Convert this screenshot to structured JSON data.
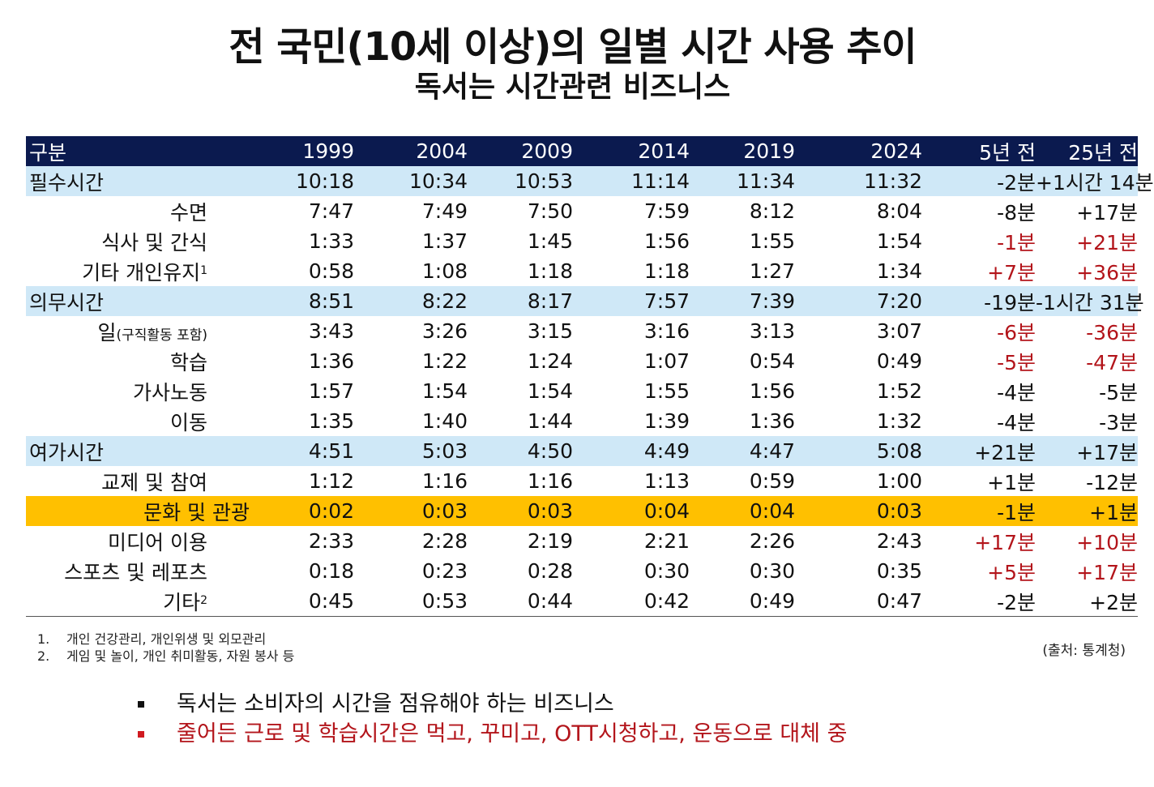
{
  "title": "전 국민(10세 이상)의 일별 시간 사용 추이",
  "subtitle": "독서는 시간관련 비즈니스",
  "table": {
    "headers": [
      "구분",
      "1999",
      "2004",
      "2009",
      "2014",
      "2019",
      "2024",
      "5년 전",
      "25년 전"
    ],
    "rows": [
      {
        "type": "category",
        "label": "필수시간",
        "values": [
          "10:18",
          "10:34",
          "10:53",
          "11:14",
          "11:34",
          "11:32",
          "-2분",
          "+1시간 14분"
        ],
        "red": [
          false,
          false
        ]
      },
      {
        "type": "sub",
        "label": "수면",
        "values": [
          "7:47",
          "7:49",
          "7:50",
          "7:59",
          "8:12",
          "8:04",
          "-8분",
          "+17분"
        ],
        "red": [
          false,
          false
        ]
      },
      {
        "type": "sub",
        "label": "식사 및 간식",
        "values": [
          "1:33",
          "1:37",
          "1:45",
          "1:56",
          "1:55",
          "1:54",
          "-1분",
          "+21분"
        ],
        "red": [
          true,
          true
        ]
      },
      {
        "type": "sub",
        "label": "기타 개인유지",
        "note": "1",
        "values": [
          "0:58",
          "1:08",
          "1:18",
          "1:18",
          "1:27",
          "1:34",
          "+7분",
          "+36분"
        ],
        "red": [
          true,
          true
        ]
      },
      {
        "type": "category",
        "label": "의무시간",
        "values": [
          "8:51",
          "8:22",
          "8:17",
          "7:57",
          "7:39",
          "7:20",
          "-19분",
          "-1시간 31분"
        ],
        "red": [
          false,
          false
        ]
      },
      {
        "type": "sub",
        "label": "일",
        "label_small": "(구직활동 포함)",
        "values": [
          "3:43",
          "3:26",
          "3:15",
          "3:16",
          "3:13",
          "3:07",
          "-6분",
          "-36분"
        ],
        "red": [
          true,
          true
        ]
      },
      {
        "type": "sub",
        "label": "학습",
        "values": [
          "1:36",
          "1:22",
          "1:24",
          "1:07",
          "0:54",
          "0:49",
          "-5분",
          "-47분"
        ],
        "red": [
          true,
          true
        ]
      },
      {
        "type": "sub",
        "label": "가사노동",
        "values": [
          "1:57",
          "1:54",
          "1:54",
          "1:55",
          "1:56",
          "1:52",
          "-4분",
          "-5분"
        ],
        "red": [
          false,
          false
        ]
      },
      {
        "type": "sub",
        "label": "이동",
        "values": [
          "1:35",
          "1:40",
          "1:44",
          "1:39",
          "1:36",
          "1:32",
          "-4분",
          "-3분"
        ],
        "red": [
          false,
          false
        ]
      },
      {
        "type": "category",
        "label": "여가시간",
        "values": [
          "4:51",
          "5:03",
          "4:50",
          "4:49",
          "4:47",
          "5:08",
          "+21분",
          "+17분"
        ],
        "red": [
          false,
          false
        ]
      },
      {
        "type": "sub",
        "label": "교제 및 참여",
        "values": [
          "1:12",
          "1:16",
          "1:16",
          "1:13",
          "0:59",
          "1:00",
          "+1분",
          "-12분"
        ],
        "red": [
          false,
          false
        ]
      },
      {
        "type": "highlight",
        "label": "문화 및 관광",
        "values": [
          "0:02",
          "0:03",
          "0:03",
          "0:04",
          "0:04",
          "0:03",
          "-1분",
          "+1분"
        ],
        "red": [
          false,
          false
        ]
      },
      {
        "type": "sub",
        "label": "미디어 이용",
        "values": [
          "2:33",
          "2:28",
          "2:19",
          "2:21",
          "2:26",
          "2:43",
          "+17분",
          "+10분"
        ],
        "red": [
          true,
          true
        ]
      },
      {
        "type": "sub",
        "label": "스포츠 및 레포츠",
        "values": [
          "0:18",
          "0:23",
          "0:28",
          "0:30",
          "0:30",
          "0:35",
          "+5분",
          "+17분"
        ],
        "red": [
          true,
          true
        ]
      },
      {
        "type": "sub",
        "label": "기타",
        "note": "2",
        "values": [
          "0:45",
          "0:53",
          "0:44",
          "0:42",
          "0:49",
          "0:47",
          "-2분",
          "+2분"
        ],
        "red": [
          false,
          false
        ]
      }
    ]
  },
  "footnotes": [
    {
      "num": "1.",
      "text": "개인 건강관리, 개인위생 및 외모관리"
    },
    {
      "num": "2.",
      "text": "게임 및 놀이, 개인 취미활동, 자원 봉사 등"
    }
  ],
  "source": "(출처: 통계청)",
  "bullets": [
    "독서는 소비자의 시간을 점유해야 하는 비즈니스",
    "줄어든 근로 및 학습시간은 먹고, 꾸미고, OTT시청하고, 운동으로 대체 중"
  ],
  "colors": {
    "header_bg": "#0b1a4f",
    "category_bg": "#cfe8f7",
    "highlight_bg": "#ffc000",
    "red_text": "#b3151b"
  }
}
